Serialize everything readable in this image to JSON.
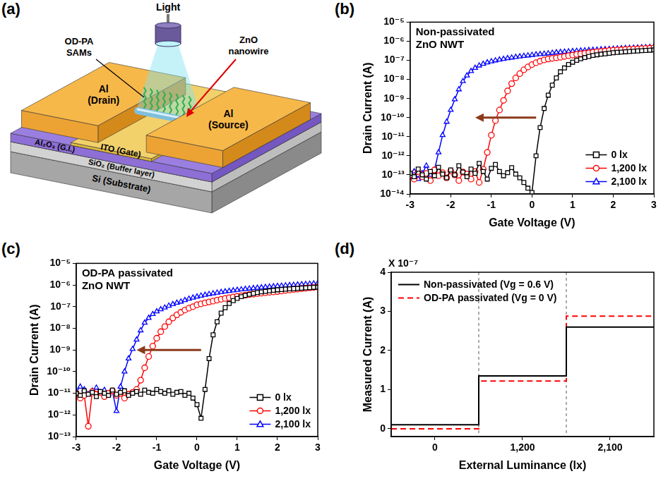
{
  "diagram": {
    "panel": "(a)",
    "light": "Light",
    "sams": [
      "OD-PA",
      "SAMs"
    ],
    "nanowire": [
      "ZnO",
      "nanowire"
    ],
    "drain": [
      "Al",
      "(Drain)"
    ],
    "source": [
      "Al",
      "(Source)"
    ],
    "gate": "ITO (Gate)",
    "insulator": "Al₂O₃ (G.I.)",
    "buffer": "SiO₂ (Buffer layer)",
    "substrate": "Si (Substrate)"
  },
  "chart_data": [
    {
      "panel": "(b)",
      "type": "line",
      "annotation": [
        "Non-passivated",
        "ZnO NWT"
      ],
      "x_label": "Gate Voltage (V)",
      "y_label": "Drain Current (A)",
      "log": "y",
      "grid": false,
      "legend": "lower right",
      "xlim": [
        -3,
        3
      ],
      "xticks": [
        -3,
        -2,
        -1,
        0,
        1,
        2,
        3
      ],
      "ylim": [
        1e-14,
        1e-05
      ],
      "yticks": [
        {
          "value": 1e-14,
          "label": "10⁻¹⁴"
        },
        {
          "value": 1e-13,
          "label": "10⁻¹³"
        },
        {
          "value": 1e-12,
          "label": "10⁻¹²"
        },
        {
          "value": 1e-11,
          "label": "10⁻¹¹"
        },
        {
          "value": 1e-10,
          "label": "10⁻¹⁰"
        },
        {
          "value": 1e-09,
          "label": "10⁻⁹"
        },
        {
          "value": 1e-08,
          "label": "10⁻⁸"
        },
        {
          "value": 1e-07,
          "label": "10⁻⁷"
        },
        {
          "value": 1e-06,
          "label": "10⁻⁶"
        },
        {
          "value": 1e-05,
          "label": "10⁻⁵"
        }
      ],
      "x": [
        -3,
        -2.9,
        -2.8,
        -2.7,
        -2.6,
        -2.5,
        -2.4,
        -2.3,
        -2.2,
        -2.1,
        -2,
        -1.9,
        -1.8,
        -1.7,
        -1.6,
        -1.5,
        -1.4,
        -1.3,
        -1.2,
        -1.1,
        -1,
        -0.9,
        -0.8,
        -0.7,
        -0.6,
        -0.5,
        -0.4,
        -0.3,
        -0.2,
        -0.1,
        0,
        0.1,
        0.2,
        0.3,
        0.4,
        0.5,
        0.6,
        0.7,
        0.8,
        0.9,
        1,
        1.1,
        1.2,
        1.3,
        1.4,
        1.5,
        1.6,
        1.7,
        1.8,
        1.9,
        2,
        2.1,
        2.2,
        2.3,
        2.4,
        2.5,
        2.6,
        2.7,
        2.8,
        2.9,
        3
      ],
      "series": [
        {
          "name": "0 lx",
          "color": "#000000",
          "marker": "square",
          "line_style": "solid",
          "values": [
            1.2e-13,
            8e-14,
            2e-13,
            1e-13,
            6e-14,
            1.5e-13,
            9e-14,
            2.5e-13,
            1.1e-13,
            7e-14,
            1.8e-13,
            1e-13,
            3e-13,
            1.4e-13,
            8e-14,
            2e-13,
            1.2e-13,
            4e-13,
            1.5e-13,
            6e-14,
            2.2e-13,
            3.5e-13,
            1.5e-13,
            9e-14,
            1.3e-13,
            2.4e-13,
            1.1e-13,
            7e-14,
            4e-14,
            2e-14,
            1.2e-14,
            1e-12,
            3e-11,
            3e-10,
            1.5e-09,
            5e-09,
            1.2e-08,
            2.5e-08,
            4e-08,
            6e-08,
            8e-08,
            1e-07,
            1.2e-07,
            1.4e-07,
            1.6e-07,
            1.8e-07,
            1.95e-07,
            2.1e-07,
            2.2e-07,
            2.35e-07,
            2.5e-07,
            2.6e-07,
            2.7e-07,
            2.8e-07,
            2.9e-07,
            3e-07,
            3.1e-07,
            3.2e-07,
            3.3e-07,
            3.4e-07,
            3.5e-07
          ]
        },
        {
          "name": "1,200 lx",
          "color": "#ff0000",
          "marker": "circle",
          "line_style": "solid",
          "values": [
            1e-13,
            6e-14,
            1.5e-13,
            8e-14,
            1.2e-13,
            5e-14,
            1.8e-13,
            9e-14,
            1.3e-13,
            7e-14,
            1.6e-13,
            1e-13,
            5e-14,
            1.4e-13,
            1.1e-13,
            6e-14,
            1.5e-13,
            4e-14,
            2e-13,
            1.5e-12,
            1.2e-11,
            7e-11,
            2.5e-10,
            8e-10,
            2.5e-09,
            6e-09,
            1.2e-08,
            2e-08,
            3.2e-08,
            4.5e-08,
            6e-08,
            7.5e-08,
            9e-08,
            1.05e-07,
            1.18e-07,
            1.28e-07,
            1.35e-07,
            1.45e-07,
            1.6e-07,
            1.75e-07,
            1.9e-07,
            2.05e-07,
            2.2e-07,
            2.35e-07,
            2.5e-07,
            2.65e-07,
            2.8e-07,
            2.95e-07,
            3.1e-07,
            3.25e-07,
            3.4e-07,
            3.5e-07,
            3.6e-07,
            3.7e-07,
            3.8e-07,
            3.9e-07,
            4e-07,
            4.1e-07,
            4.2e-07,
            4.35e-07,
            4.5e-07
          ]
        },
        {
          "name": "2,100 lx",
          "color": "#0000ff",
          "marker": "triangle",
          "line_style": "solid",
          "values": [
            8e-14,
            1.5e-13,
            6e-14,
            1.2e-13,
            3e-13,
            1e-13,
            1.8e-13,
            1.5e-12,
            1.2e-11,
            6e-11,
            2.5e-10,
            9e-10,
            3e-09,
            8e-09,
            1.6e-08,
            2.7e-08,
            4e-08,
            5.3e-08,
            6.5e-08,
            7.7e-08,
            8.8e-08,
            9.8e-08,
            1.08e-07,
            1.18e-07,
            1.28e-07,
            1.38e-07,
            1.48e-07,
            1.58e-07,
            1.68e-07,
            1.78e-07,
            1.9e-07,
            2e-07,
            2.1e-07,
            2.2e-07,
            2.3e-07,
            2.45e-07,
            2.6e-07,
            2.7e-07,
            2.8e-07,
            2.9e-07,
            3e-07,
            3.1e-07,
            3.2e-07,
            3.3e-07,
            3.4e-07,
            3.5e-07,
            3.6e-07,
            3.7e-07,
            3.8e-07,
            3.9e-07,
            4e-07,
            4.1e-07,
            4.2e-07,
            4.3e-07,
            4.4e-07,
            4.5e-07,
            4.6e-07,
            4.7e-07,
            4.8e-07,
            4.9e-07,
            5e-07
          ]
        }
      ]
    },
    {
      "panel": "(c)",
      "type": "line",
      "annotation": [
        "OD-PA passivated",
        "ZnO NWT"
      ],
      "x_label": "Gate Voltage (V)",
      "y_label": "Drain Current (A)",
      "log": "y",
      "grid": false,
      "legend": "lower right",
      "xlim": [
        -3,
        3
      ],
      "xticks": [
        -3,
        -2,
        -1,
        0,
        1,
        2,
        3
      ],
      "ylim": [
        1e-13,
        1e-05
      ],
      "yticks": [
        {
          "value": 1e-13,
          "label": "10⁻¹³"
        },
        {
          "value": 1e-12,
          "label": "10⁻¹²"
        },
        {
          "value": 1e-11,
          "label": "10⁻¹¹"
        },
        {
          "value": 1e-10,
          "label": "10⁻¹⁰"
        },
        {
          "value": 1e-09,
          "label": "10⁻⁹"
        },
        {
          "value": 1e-08,
          "label": "10⁻⁸"
        },
        {
          "value": 1e-07,
          "label": "10⁻⁷"
        },
        {
          "value": 1e-06,
          "label": "10⁻⁶"
        },
        {
          "value": 1e-05,
          "label": "10⁻⁵"
        }
      ],
      "x": [
        -3,
        -2.9,
        -2.8,
        -2.7,
        -2.6,
        -2.5,
        -2.4,
        -2.3,
        -2.2,
        -2.1,
        -2,
        -1.9,
        -1.8,
        -1.7,
        -1.6,
        -1.5,
        -1.4,
        -1.3,
        -1.2,
        -1.1,
        -1,
        -0.9,
        -0.8,
        -0.7,
        -0.6,
        -0.5,
        -0.4,
        -0.3,
        -0.2,
        -0.1,
        0,
        0.1,
        0.2,
        0.3,
        0.4,
        0.5,
        0.6,
        0.7,
        0.8,
        0.9,
        1,
        1.1,
        1.2,
        1.3,
        1.4,
        1.5,
        1.6,
        1.7,
        1.8,
        1.9,
        2,
        2.1,
        2.2,
        2.3,
        2.4,
        2.5,
        2.6,
        2.7,
        2.8,
        2.9,
        3
      ],
      "series": [
        {
          "name": "0 lx",
          "color": "#000000",
          "marker": "square",
          "line_style": "solid",
          "values": [
            1e-11,
            8e-12,
            1.3e-11,
            9e-12,
            1.1e-11,
            7e-12,
            1.2e-11,
            1e-11,
            8e-12,
            1.4e-11,
            9e-12,
            1.1e-11,
            1.3e-11,
            8e-12,
            1e-11,
            1.2e-11,
            9e-12,
            1.4e-11,
            1.1e-11,
            1e-11,
            1.5e-11,
            1.2e-11,
            1e-11,
            1.3e-11,
            9e-12,
            1.1e-11,
            1.2e-11,
            8e-12,
            1e-11,
            6e-12,
            3e-12,
            7e-13,
            1.5e-11,
            4e-10,
            5e-09,
            2e-08,
            5e-08,
            9e-08,
            1.4e-07,
            1.9e-07,
            2.4e-07,
            2.9e-07,
            3.3e-07,
            3.7e-07,
            4.1e-07,
            4.5e-07,
            4.8e-07,
            5.1e-07,
            5.4e-07,
            5.7e-07,
            6e-07,
            6.2e-07,
            6.4e-07,
            6.6e-07,
            6.8e-07,
            7e-07,
            7.2e-07,
            7.4e-07,
            7.6e-07,
            7.8e-07,
            8e-07
          ]
        },
        {
          "name": "1,200 lx",
          "color": "#ff0000",
          "marker": "circle",
          "line_style": "solid",
          "values": [
            1e-11,
            6e-12,
            8e-12,
            3e-13,
            1.2e-11,
            9e-12,
            1.1e-11,
            7e-12,
            1e-11,
            1.3e-11,
            8e-12,
            1e-11,
            6e-12,
            9e-12,
            1.1e-11,
            1.5e-11,
            4e-11,
            1.5e-10,
            5e-10,
            1.5e-09,
            3.5e-09,
            7e-09,
            1.2e-08,
            2e-08,
            3e-08,
            4.2e-08,
            5.5e-08,
            7e-08,
            8.5e-08,
            1e-07,
            1.22e-07,
            1.35e-07,
            1.5e-07,
            1.65e-07,
            1.8e-07,
            2e-07,
            2.2e-07,
            2.4e-07,
            2.6e-07,
            2.8e-07,
            3e-07,
            3.2e-07,
            3.4e-07,
            3.6e-07,
            3.8e-07,
            4e-07,
            4.2e-07,
            4.4e-07,
            4.6e-07,
            4.8e-07,
            5e-07,
            5.3e-07,
            5.6e-07,
            5.9e-07,
            6.2e-07,
            6.5e-07,
            6.8e-07,
            7.1e-07,
            7.4e-07,
            7.7e-07,
            8e-07
          ]
        },
        {
          "name": "2,100 lx",
          "color": "#0000ff",
          "marker": "triangle",
          "line_style": "solid",
          "values": [
            1.2e-11,
            2e-11,
            1.5e-11,
            9e-12,
            1.3e-11,
            1.8e-11,
            1.1e-11,
            1.4e-11,
            9e-12,
            1.2e-11,
            1.5e-12,
            2e-11,
            1e-10,
            4e-10,
            1.1e-09,
            3e-09,
            8e-09,
            1.8e-08,
            3e-08,
            4.5e-08,
            6e-08,
            7.5e-08,
            9e-08,
            1.1e-07,
            1.3e-07,
            1.5e-07,
            1.7e-07,
            2e-07,
            2.3e-07,
            2.6e-07,
            2.9e-07,
            3.2e-07,
            3.5e-07,
            3.8e-07,
            4.1e-07,
            4.4e-07,
            4.7e-07,
            5e-07,
            5.3e-07,
            5.6e-07,
            5.9e-07,
            6.2e-07,
            6.5e-07,
            6.8e-07,
            7.1e-07,
            7.4e-07,
            7.7e-07,
            8e-07,
            8.3e-07,
            8.6e-07,
            8.9e-07,
            9.2e-07,
            9.5e-07,
            9.8e-07,
            1.01e-06,
            1.04e-06,
            1.07e-06,
            1.1e-06,
            1.13e-06,
            1.16e-06,
            1.2e-06
          ]
        }
      ]
    },
    {
      "panel": "(d)",
      "type": "step",
      "y_multiplier": "X 10⁻⁷",
      "x_label": "External Luminance (lx)",
      "y_label": "Measured Current (A)",
      "grid": false,
      "legend": "upper left",
      "categories": [
        "0",
        "1,200",
        "2,100"
      ],
      "ylim": [
        -0.2,
        4
      ],
      "yticks": [
        0,
        1,
        2,
        3,
        4
      ],
      "series": [
        {
          "name": "Non-passivated (Vg = 0.6 V)",
          "color": "#000000",
          "line_style": "solid",
          "values": [
            0.1,
            1.35,
            2.6
          ]
        },
        {
          "name": "OD-PA passivated (Vg = 0 V)",
          "color": "#ff0000",
          "line_style": "dashed",
          "values": [
            0,
            1.22,
            2.88
          ]
        }
      ]
    }
  ]
}
